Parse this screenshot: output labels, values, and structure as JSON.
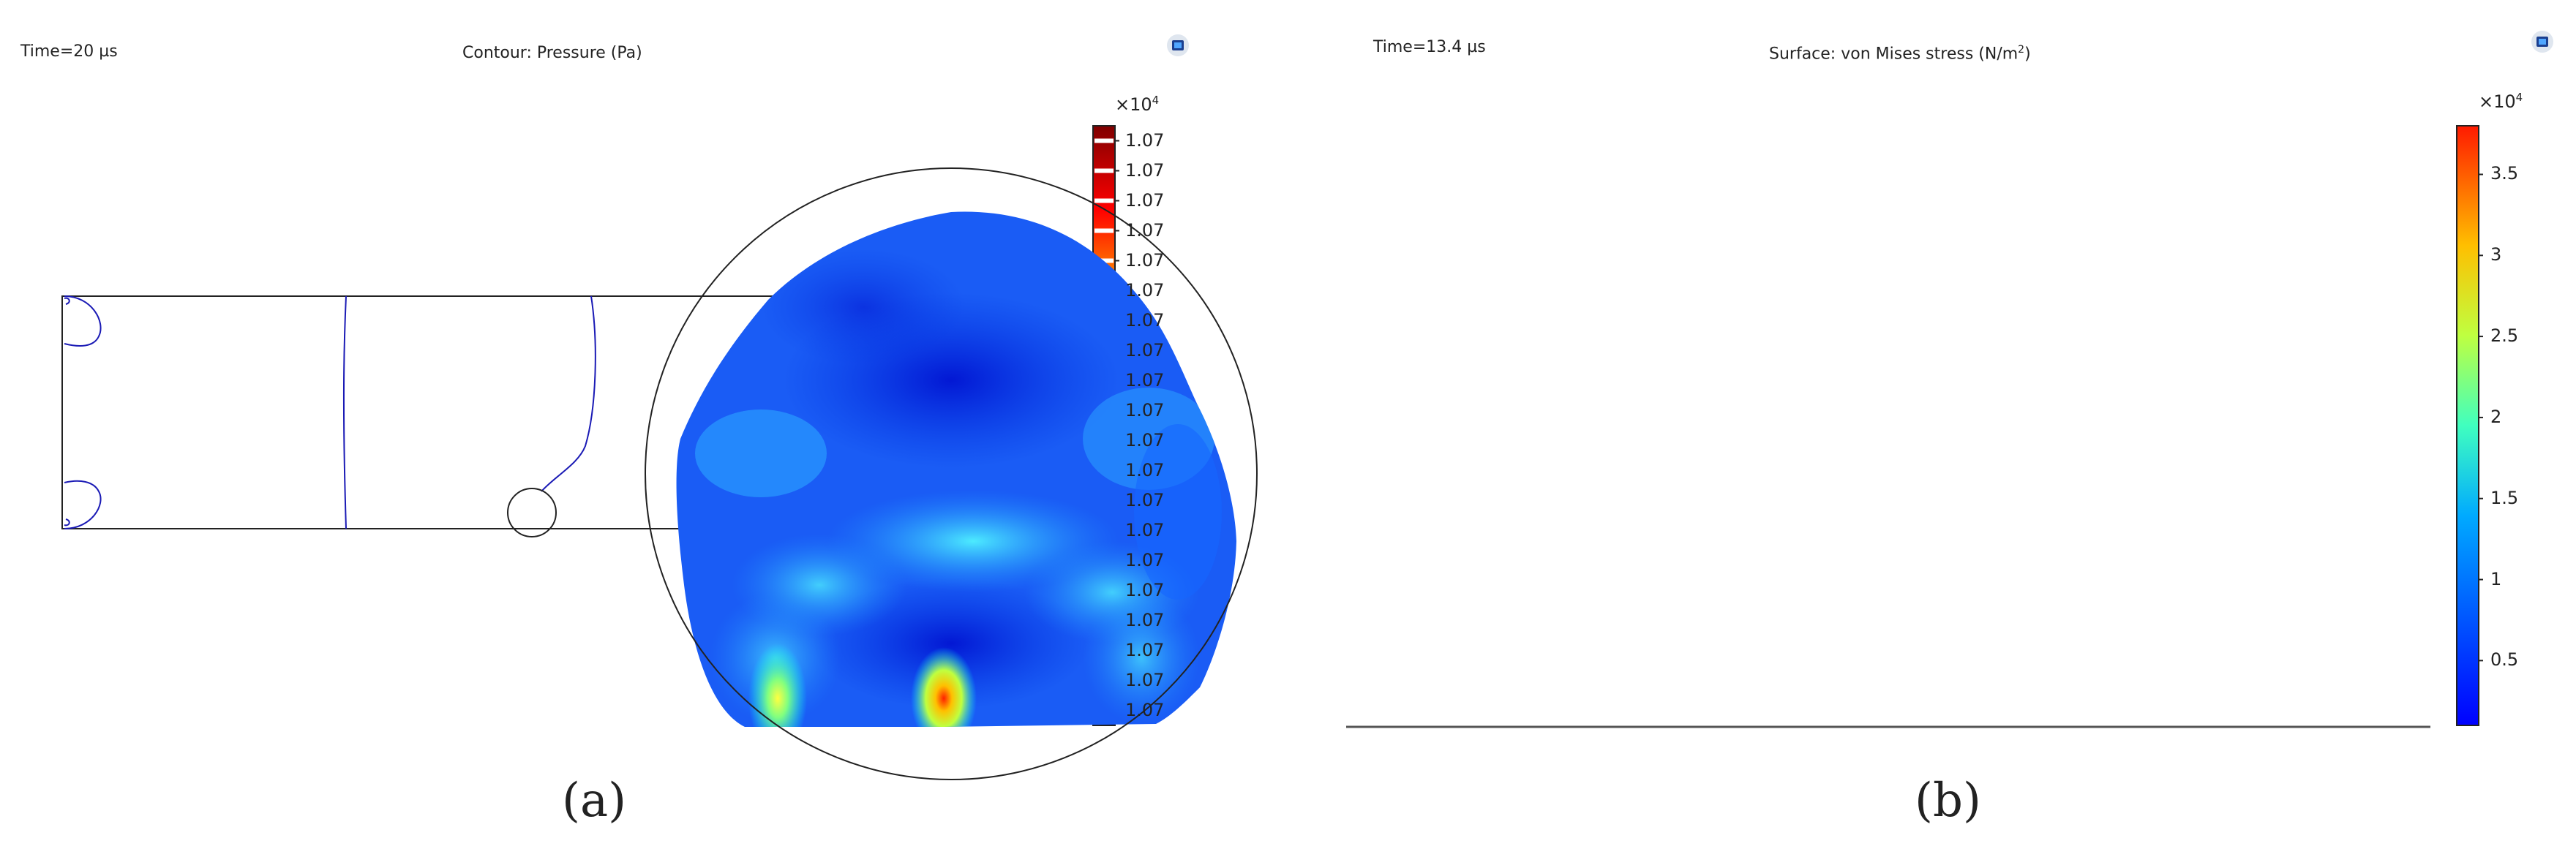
{
  "panel_a": {
    "time_label": "Time=20 µs",
    "title": "Contour: Pressure (Pa)",
    "subfig_label": "(a)",
    "colorbar": {
      "multiplier_base": "×10",
      "multiplier_exp": "4",
      "tick_labels": [
        "1.07",
        "1.07",
        "1.07",
        "1.07",
        "1.07",
        "1.07",
        "1.07",
        "1.07",
        "1.07",
        "1.07",
        "1.07",
        "1.07",
        "1.07",
        "1.07",
        "1.07",
        "1.07",
        "1.07",
        "1.07",
        "1.07",
        "1.07"
      ]
    }
  },
  "panel_b": {
    "time_label": "Time=13.4 µs",
    "title_main": "Surface: von Mises stress (N/m",
    "title_exp": "2",
    "title_close": ")",
    "subfig_label": "(b)",
    "colorbar": {
      "multiplier_base": "×10",
      "multiplier_exp": "4",
      "tick_labels": [
        "3.5",
        "3",
        "2.5",
        "2",
        "1.5",
        "1",
        "0.5"
      ],
      "tick_values": [
        3.5,
        3,
        2.5,
        2,
        1.5,
        1,
        0.5
      ],
      "range": [
        0.1,
        3.8
      ]
    }
  },
  "logo_icon": "comsol-logo-icon"
}
